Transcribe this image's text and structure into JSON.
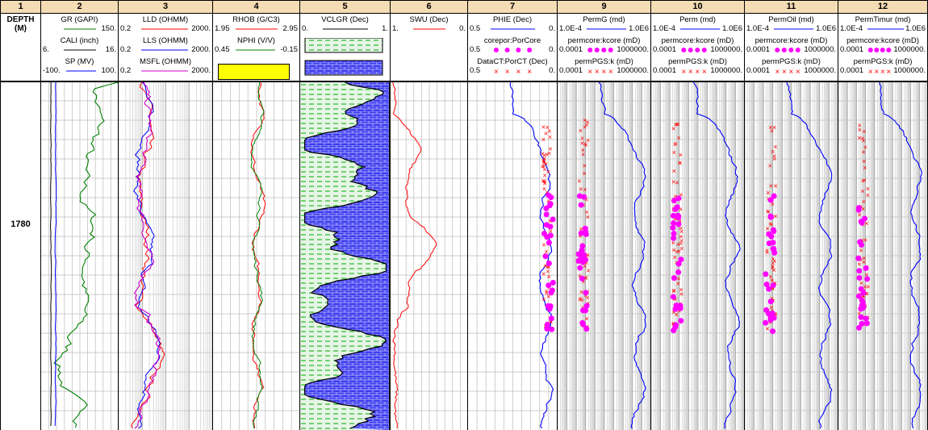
{
  "chart_data": {
    "type": "line",
    "depth_axis": {
      "label": "DEPTH",
      "unit": "(M)",
      "tick": "1780"
    },
    "tracks": [
      {
        "num": "1",
        "kind": "depth"
      },
      {
        "num": "2",
        "curves": [
          {
            "name": "GR (GAPI)",
            "min": "",
            "max": "150.",
            "color": "#008000"
          },
          {
            "name": "CALI (inch)",
            "min": "6.",
            "max": "16.",
            "color": "#000000"
          },
          {
            "name": "SP (MV)",
            "min": "-100.",
            "max": "100.",
            "color": "#0000ff"
          }
        ]
      },
      {
        "num": "3",
        "curves": [
          {
            "name": "LLD (OHMM)",
            "min": "0.2",
            "max": "2000.",
            "color": "#ff0000"
          },
          {
            "name": "LLS (OHMM)",
            "min": "0.2",
            "max": "2000.",
            "color": "#0000ff"
          },
          {
            "name": "MSFL (OHMM)",
            "min": "0.2",
            "max": "2000.",
            "color": "#cc00cc"
          }
        ]
      },
      {
        "num": "4",
        "curves": [
          {
            "name": "RHOB (G/C3)",
            "min": "1.95",
            "max": "2.95",
            "color": "#ff0000"
          },
          {
            "name": "NPHI (V/V)",
            "min": "0.45",
            "max": "-0.15",
            "color": "#008000"
          }
        ]
      },
      {
        "num": "5",
        "curves": [
          {
            "name": "VCLGR (Dec)",
            "min": "0.",
            "max": "1.",
            "color": "#000000"
          }
        ]
      },
      {
        "num": "6",
        "curves": [
          {
            "name": "SWU (Dec)",
            "min": "1.",
            "max": "0.",
            "color": "#ff0000"
          }
        ]
      },
      {
        "num": "7",
        "curves": [
          {
            "name": "PHIE (Dec)",
            "min": "0.5",
            "max": "0.",
            "color": "#0000ff"
          },
          {
            "name": "corepor:PorCore",
            "min": "0.5",
            "max": "0.",
            "color": "#ff00ff",
            "marker": "dot"
          },
          {
            "name": "DataCT:PorCT (Dec)",
            "min": "0.5",
            "max": "0.",
            "color": "#ff0000",
            "marker": "x"
          }
        ]
      },
      {
        "num": "9",
        "curves": [
          {
            "name": "PermG (md)",
            "min": "1.0E-4",
            "max": "1.0E6",
            "color": "#0000ff"
          },
          {
            "name": "permcore:kcore (mD)",
            "min": "0.0001",
            "max": "1000000.",
            "color": "#ff00ff",
            "marker": "dot"
          },
          {
            "name": "permPGS:k (mD)",
            "min": "0.0001",
            "max": "1000000.",
            "color": "#ff0000",
            "marker": "x"
          }
        ]
      },
      {
        "num": "10",
        "curves": [
          {
            "name": "Perm (md)",
            "min": "1.0E-4",
            "max": "1.0E6",
            "color": "#0000ff"
          },
          {
            "name": "permcore:kcore (mD)",
            "min": "0.0001",
            "max": "1000000.",
            "color": "#ff00ff",
            "marker": "dot"
          },
          {
            "name": "permPGS:k (mD)",
            "min": "0.0001",
            "max": "1000000.",
            "color": "#ff0000",
            "marker": "x"
          }
        ]
      },
      {
        "num": "11",
        "curves": [
          {
            "name": "PermOil (md)",
            "min": "1.0E-4",
            "max": "1.0E6",
            "color": "#0000ff"
          },
          {
            "name": "permcore:kcore (mD)",
            "min": "0.0001",
            "max": "1000000.",
            "color": "#ff00ff",
            "marker": "dot"
          },
          {
            "name": "permPGS:k (mD)",
            "min": "0.0001",
            "max": "1000000.",
            "color": "#ff0000",
            "marker": "x"
          }
        ]
      },
      {
        "num": "12",
        "curves": [
          {
            "name": "PermTimur (md)",
            "min": "1.0E-4",
            "max": "1.0E6",
            "color": "#0000ff"
          },
          {
            "name": "permcore:kcore (mD)",
            "min": "0.0001",
            "max": "1000000.",
            "color": "#ff00ff",
            "marker": "dot"
          },
          {
            "name": "permPGS:k (mD)",
            "min": "0.0001",
            "max": "1000000.",
            "color": "#ff0000",
            "marker": "x"
          }
        ]
      }
    ],
    "fills": {
      "nphi_swatch": "#ffff00",
      "shale": "#00aa00",
      "sand": "#0000cc"
    }
  }
}
